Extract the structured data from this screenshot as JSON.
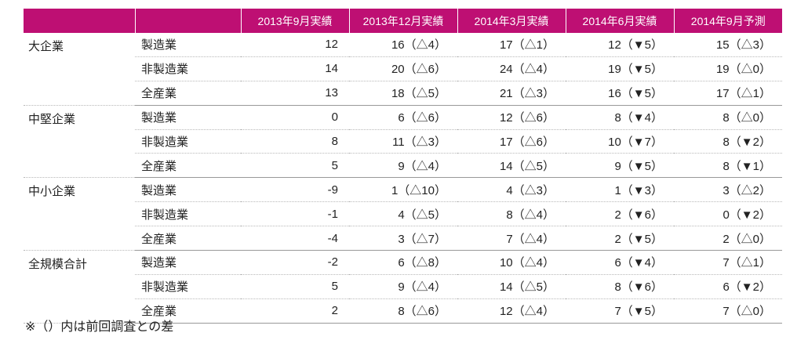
{
  "table": {
    "headers": [
      "",
      "",
      "2013年9月実績",
      "2013年12月実績",
      "2014年3月実績",
      "2014年6月実績",
      "2014年9月予測"
    ],
    "groups": [
      {
        "name": "大企業",
        "rows": [
          {
            "sub": "製造業",
            "values": [
              "12",
              "16（△4）",
              "17（△1）",
              "12（▼5）",
              "15（△3）"
            ]
          },
          {
            "sub": "非製造業",
            "values": [
              "14",
              "20（△6）",
              "24（△4）",
              "19（▼5）",
              "19（△0）"
            ]
          },
          {
            "sub": "全産業",
            "values": [
              "13",
              "18（△5）",
              "21（△3）",
              "16（▼5）",
              "17（△1）"
            ]
          }
        ]
      },
      {
        "name": "中堅企業",
        "rows": [
          {
            "sub": "製造業",
            "values": [
              "0",
              "6（△6）",
              "12（△6）",
              "8（▼4）",
              "8（△0）"
            ]
          },
          {
            "sub": "非製造業",
            "values": [
              "8",
              "11（△3）",
              "17（△6）",
              "10（▼7）",
              "8（▼2）"
            ]
          },
          {
            "sub": "全産業",
            "values": [
              "5",
              "9（△4）",
              "14（△5）",
              "9（▼5）",
              "8（▼1）"
            ]
          }
        ]
      },
      {
        "name": "中小企業",
        "rows": [
          {
            "sub": "製造業",
            "values": [
              "-9",
              "1（△10）",
              "4（△3）",
              "1（▼3）",
              "3（△2）"
            ]
          },
          {
            "sub": "非製造業",
            "values": [
              "-1",
              "4（△5）",
              "8（△4）",
              "2（▼6）",
              "0（▼2）"
            ]
          },
          {
            "sub": "全産業",
            "values": [
              "-4",
              "3（△7）",
              "7（△4）",
              "2（▼5）",
              "2（△0）"
            ]
          }
        ]
      },
      {
        "name": "全規模合計",
        "rows": [
          {
            "sub": "製造業",
            "values": [
              "-2",
              "6（△8）",
              "10（△4）",
              "6（▼4）",
              "7（△1）"
            ]
          },
          {
            "sub": "非製造業",
            "values": [
              "5",
              "9（△4）",
              "14（△5）",
              "8（▼6）",
              "6（▼2）"
            ]
          },
          {
            "sub": "全産業",
            "values": [
              "2",
              "8（△6）",
              "12（△4）",
              "7（▼5）",
              "7（△0）"
            ]
          }
        ]
      }
    ]
  },
  "colors": {
    "header_bg": "#be0f73",
    "header_text": "#ffffff"
  },
  "note": "※（）内は前回調査との差"
}
